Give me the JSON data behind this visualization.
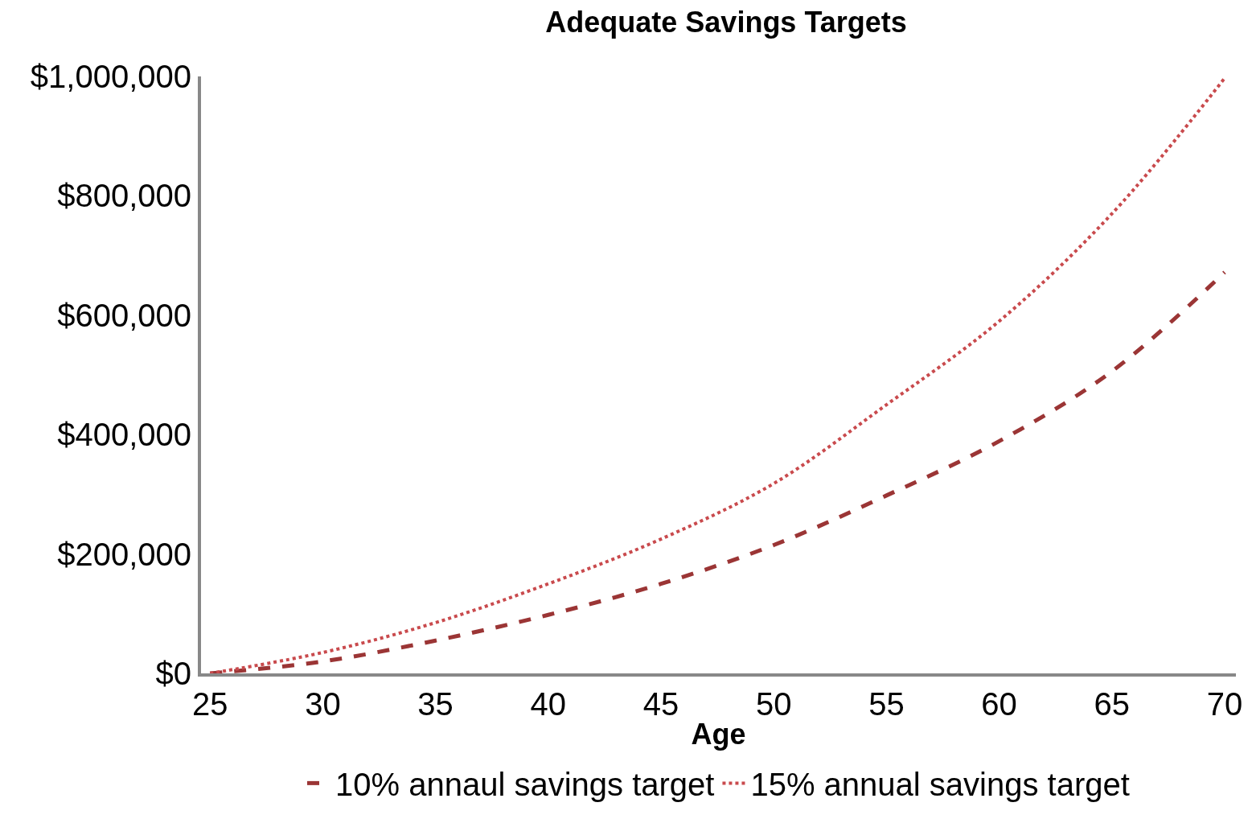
{
  "chart_data": {
    "type": "line",
    "title": "Adequate Savings Targets",
    "xlabel": "Age",
    "x": [
      25,
      30,
      35,
      40,
      45,
      50,
      55,
      60,
      65,
      70
    ],
    "series": [
      {
        "name": "10% annaul savings target",
        "color": "#9b3535",
        "line_style": "dashed",
        "values": [
          0,
          20000,
          55000,
          98000,
          150000,
          215000,
          298000,
          389000,
          506000,
          672000
        ]
      },
      {
        "name": "15% annual savings target",
        "color": "#c94a4d",
        "line_style": "dotted",
        "values": [
          0,
          35000,
          85000,
          150000,
          225000,
          318000,
          450000,
          590000,
          770000,
          997000
        ]
      }
    ],
    "xlim": [
      24.6,
      70.5
    ],
    "xticks": [
      25,
      30,
      35,
      40,
      45,
      50,
      55,
      60,
      65,
      70
    ],
    "ylim": [
      0,
      1000000
    ],
    "yticks": [
      {
        "value": 0,
        "label": "$0"
      },
      {
        "value": 200000,
        "label": "$200,000"
      },
      {
        "value": 400000,
        "label": "$400,000"
      },
      {
        "value": 600000,
        "label": "$600,000"
      },
      {
        "value": 800000,
        "label": "$800,000"
      },
      {
        "value": 1000000,
        "label": "$1,000,000"
      }
    ],
    "legend": "bottom",
    "marker": "none"
  }
}
